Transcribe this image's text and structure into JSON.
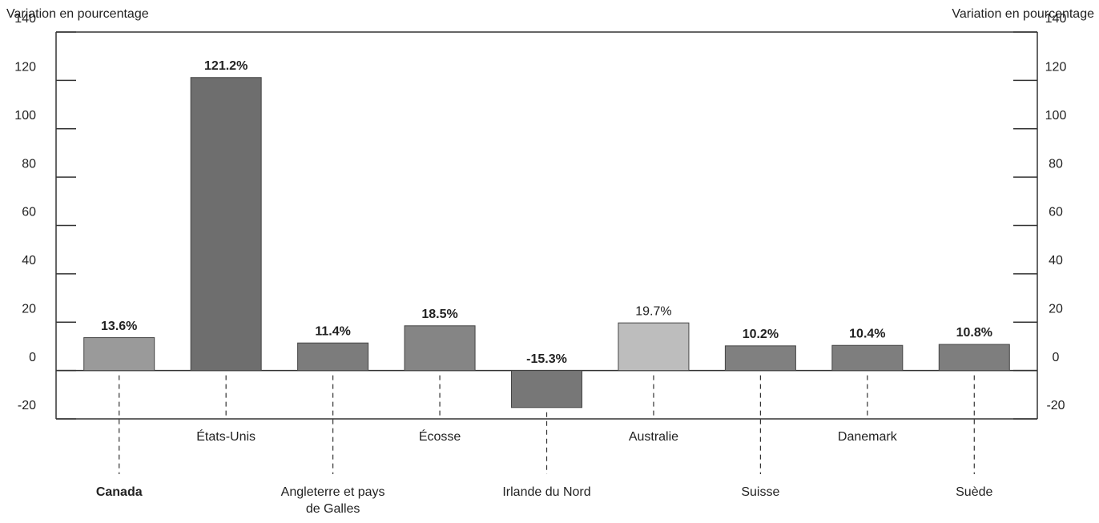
{
  "chart_data": {
    "type": "bar",
    "y_axis_label": "Variation en pourcentage",
    "y2_axis_label": "Variation en pourcentage",
    "categories": [
      "Canada",
      "États-Unis",
      "Angleterre et pays de Galles",
      "Écosse",
      "Irlande du Nord",
      "Australie",
      "Suisse",
      "Danemark",
      "Suède"
    ],
    "values": [
      13.6,
      121.2,
      11.4,
      18.5,
      -15.3,
      19.7,
      10.2,
      10.4,
      10.8
    ],
    "value_labels": [
      "13.6%",
      "121.2%",
      "11.4%",
      "18.5%",
      "-15.3%",
      "19.7%",
      "10.2%",
      "10.4%",
      "10.8%"
    ],
    "colors": [
      "#9a9a9a",
      "#6e6e6e",
      "#7c7c7c",
      "#858585",
      "#777777",
      "#bdbdbd",
      "#808080",
      "#7e7e7e",
      "#7e7e7e"
    ],
    "ylim": [
      -20,
      140
    ],
    "yticks": [
      -20,
      0,
      20,
      40,
      60,
      80,
      100,
      120,
      140
    ],
    "y2lim": [
      -20,
      140
    ],
    "y2ticks": [
      -20,
      0,
      20,
      40,
      60,
      80,
      100,
      120,
      140
    ]
  }
}
